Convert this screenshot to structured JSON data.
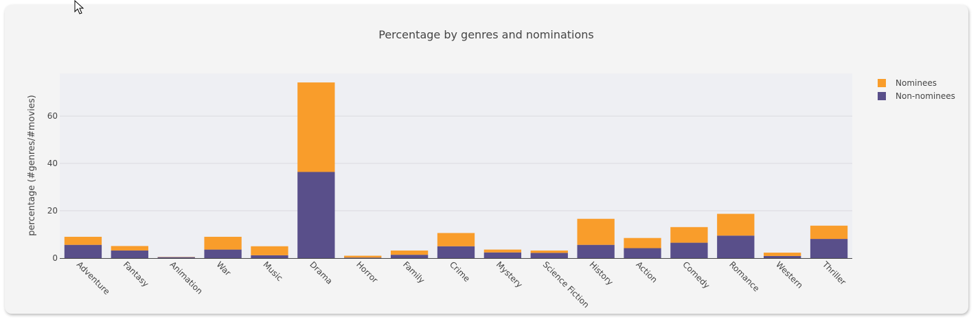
{
  "chart_data": {
    "type": "bar",
    "stacked": true,
    "title": "Percentage by genres and nominations",
    "xlabel": "",
    "ylabel": "percentage (#genres/#movies)",
    "ylim": [
      0,
      78
    ],
    "yticks": [
      0,
      20,
      40,
      60
    ],
    "grid": true,
    "legend_position": "top-right",
    "categories": [
      "Adventure",
      "Fantasy",
      "Animation",
      "War",
      "Music",
      "Drama",
      "Horror",
      "Family",
      "Crime",
      "Mystery",
      "Science Fiction",
      "History",
      "Action",
      "Comedy",
      "Romance",
      "Western",
      "Thriller"
    ],
    "series": [
      {
        "name": "Non-nominees",
        "color": "#594f8a",
        "values": [
          5.6,
          3.2,
          0.4,
          3.6,
          1.2,
          36.4,
          0.2,
          1.4,
          5.0,
          2.4,
          2.2,
          5.6,
          4.2,
          6.5,
          9.5,
          0.9,
          8.1
        ]
      },
      {
        "name": "Nominees",
        "color": "#f99d2b",
        "values": [
          3.4,
          1.9,
          0.1,
          5.4,
          3.8,
          37.8,
          0.8,
          1.8,
          5.6,
          1.2,
          1.0,
          11.0,
          4.3,
          6.6,
          9.2,
          1.4,
          5.6
        ]
      }
    ]
  },
  "legend": {
    "items": [
      {
        "label": "Nominees",
        "color": "#f99d2b"
      },
      {
        "label": "Non-nominees",
        "color": "#594f8a"
      }
    ]
  }
}
